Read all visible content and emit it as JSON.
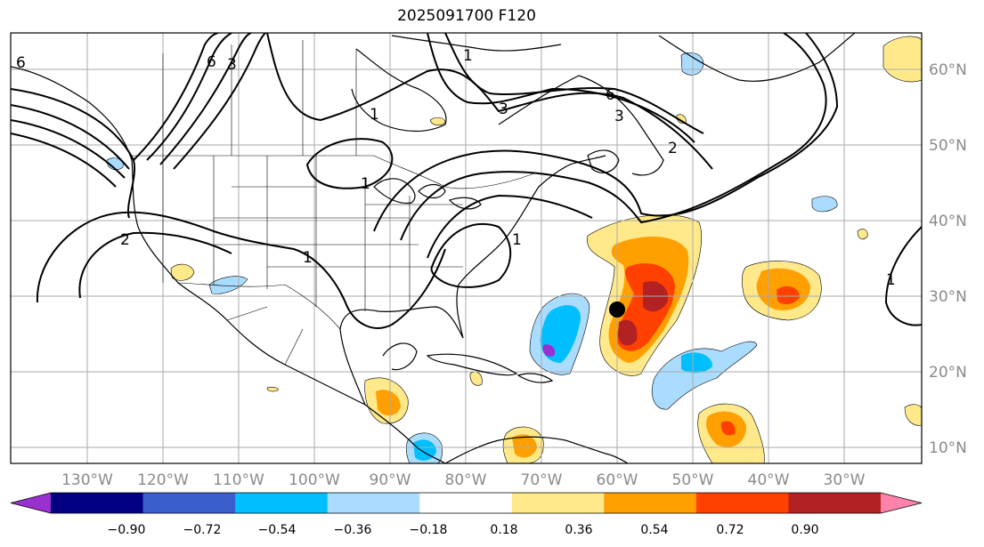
{
  "title": "2025091700 F120",
  "map": {
    "lat_labels": [
      "60°N",
      "50°N",
      "40°N",
      "30°N",
      "20°N",
      "10°N"
    ],
    "lon_labels": [
      "130°W",
      "120°W",
      "110°W",
      "100°W",
      "90°W",
      "80°W",
      "70°W",
      "60°W",
      "50°W",
      "40°W",
      "30°W"
    ],
    "contour_labels": [
      "6",
      "6",
      "3",
      "1",
      "3",
      "1",
      "1",
      "2",
      "1",
      "3",
      "1",
      "6",
      "2",
      "1"
    ],
    "marker": "storm-position-dot"
  },
  "colorbar": {
    "ticks": [
      "−0.90",
      "−0.72",
      "−0.54",
      "−0.36",
      "−0.18",
      "0.18",
      "0.36",
      "0.54",
      "0.72",
      "0.90"
    ],
    "colors": [
      "#9b30d0",
      "#000080",
      "#3a5fcd",
      "#00bfff",
      "#aadcff",
      "#ffffff",
      "#ffe98a",
      "#ff9f00",
      "#ff4000",
      "#b22222",
      "#ff82ab"
    ]
  }
}
